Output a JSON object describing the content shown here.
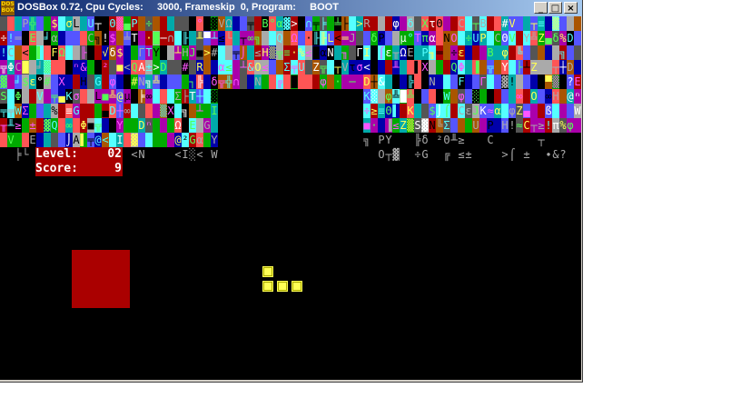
{
  "window": {
    "title": "DOSBox 0.72, Cpu Cycles:     3000, Frameskip  0, Program:     BOOT",
    "logo": "DOS BOX"
  },
  "hud": {
    "level_label": "Level:",
    "level_value": "02",
    "score_label": "Score:",
    "score_value": "9"
  },
  "colors": {
    "hud_bg": "#aa0000",
    "piece": "#ffff55",
    "screen_bg": "#000000"
  },
  "piece": {
    "shape": "L",
    "cells": [
      [
        0,
        0
      ],
      [
        0,
        1
      ],
      [
        1,
        1
      ],
      [
        2,
        1
      ]
    ]
  }
}
